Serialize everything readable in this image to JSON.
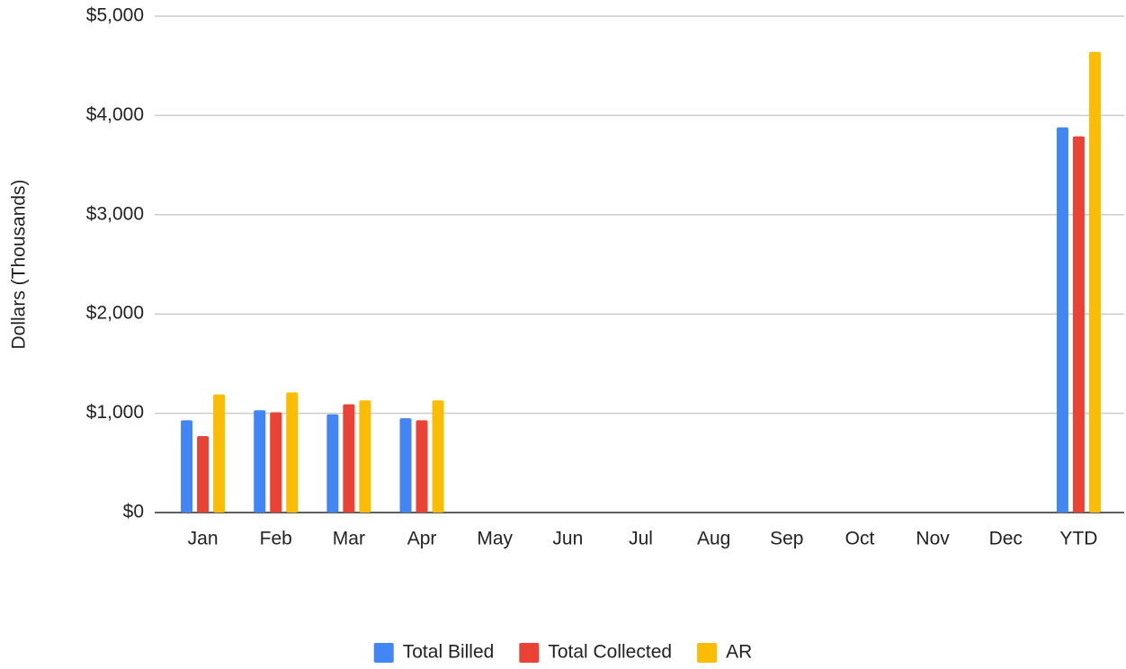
{
  "chart_data": {
    "type": "bar",
    "y_label": "Dollars (Thousands)",
    "categories": [
      "Jan",
      "Feb",
      "Mar",
      "Apr",
      "May",
      "Jun",
      "Jul",
      "Aug",
      "Sep",
      "Oct",
      "Nov",
      "Dec",
      "YTD"
    ],
    "series": [
      {
        "name": "Total Billed",
        "color": "#4285f4",
        "values": [
          930,
          1030,
          990,
          950,
          null,
          null,
          null,
          null,
          null,
          null,
          null,
          null,
          3880
        ]
      },
      {
        "name": "Total Collected",
        "color": "#ea4335",
        "values": [
          770,
          1010,
          1090,
          930,
          null,
          null,
          null,
          null,
          null,
          null,
          null,
          null,
          3790
        ]
      },
      {
        "name": "AR",
        "color": "#fbbc04",
        "values": [
          1190,
          1210,
          1130,
          1130,
          null,
          null,
          null,
          null,
          null,
          null,
          null,
          null,
          4640
        ]
      }
    ],
    "ylim": [
      0,
      5000
    ],
    "yticks": [
      {
        "value": 0,
        "label": "$0"
      },
      {
        "value": 1000,
        "label": "$1,000"
      },
      {
        "value": 2000,
        "label": "$2,000"
      },
      {
        "value": 3000,
        "label": "$3,000"
      },
      {
        "value": 4000,
        "label": "$4,000"
      },
      {
        "value": 5000,
        "label": "$5,000"
      }
    ],
    "grid": true,
    "legend": "bottom"
  }
}
